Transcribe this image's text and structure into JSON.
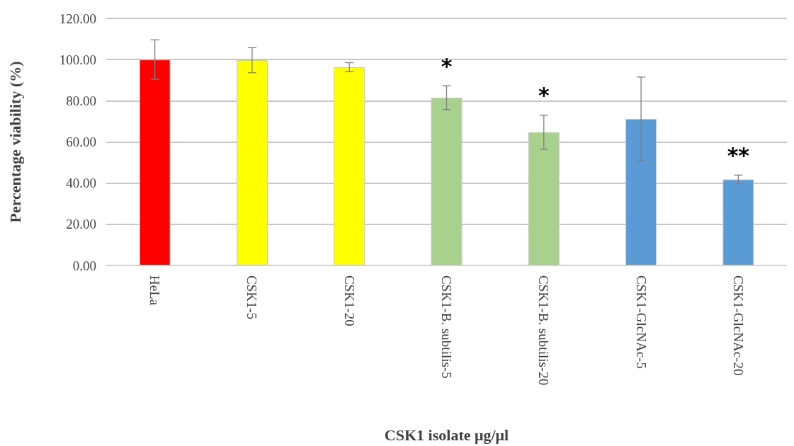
{
  "chart_data": {
    "type": "bar",
    "xlabel": "CSK1 isolate μg/μl",
    "ylabel": "Percentage viability (%)",
    "categories": [
      "HeLa",
      "CSK1-5",
      "CSK1-20",
      "CSK1-B. subtilis-5",
      "CSK1-B. subtilis-20",
      "CSK1-GlcNAc-5",
      "CSK1-GlcNAc-20"
    ],
    "values": [
      100,
      99.7,
      96.3,
      81.5,
      64.7,
      71.2,
      41.8
    ],
    "errors": [
      9.6,
      6.1,
      2.2,
      5.8,
      8.3,
      20.3,
      2.1
    ],
    "colors": [
      "#ff0000",
      "#ffff00",
      "#ffff00",
      "#a9d18e",
      "#a9d18e",
      "#5b9bd5",
      "#5b9bd5"
    ],
    "ylim": [
      0,
      120
    ],
    "yticks": [
      {
        "value": 0,
        "label": "0.00"
      },
      {
        "value": 20,
        "label": "20.00"
      },
      {
        "value": 40,
        "label": "40.00"
      },
      {
        "value": 60,
        "label": "60.00"
      },
      {
        "value": 80,
        "label": "80.00"
      },
      {
        "value": 100,
        "label": "100.00"
      },
      {
        "value": 120,
        "label": "120.00"
      }
    ],
    "grid": "y",
    "annotations": [
      {
        "text": "*",
        "x": "CSK1-B. subtilis-5",
        "y": 81.5
      },
      {
        "text": "*",
        "x": "CSK1-B. subtilis-20",
        "y": 64.7
      },
      {
        "text": "**",
        "x": "CSK1-GlcNAc-20",
        "y": 41.8
      }
    ]
  }
}
